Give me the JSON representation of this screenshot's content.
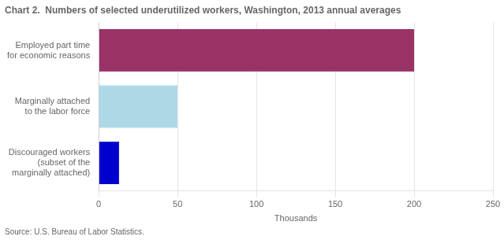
{
  "chart_data": {
    "type": "bar",
    "orientation": "horizontal",
    "title": "Chart 2.  Numbers of selected underutilized workers, Washington, 2013 annual averages",
    "categories": [
      "Discouraged workers\n(subset of the\nmarginally attached)",
      "Marginally attached\nto the labor force",
      "Employed part time\nfor economic reasons"
    ],
    "values": [
      13,
      50,
      200
    ],
    "colors": [
      "#0000cc",
      "#add8e6",
      "#993366"
    ],
    "xlim": [
      0,
      250
    ],
    "xticks": [
      0,
      50,
      100,
      150,
      200,
      250
    ],
    "xlabel": "Thousands",
    "source": "Source: U.S. Bureau of Labor Statistics.",
    "grid": true
  }
}
